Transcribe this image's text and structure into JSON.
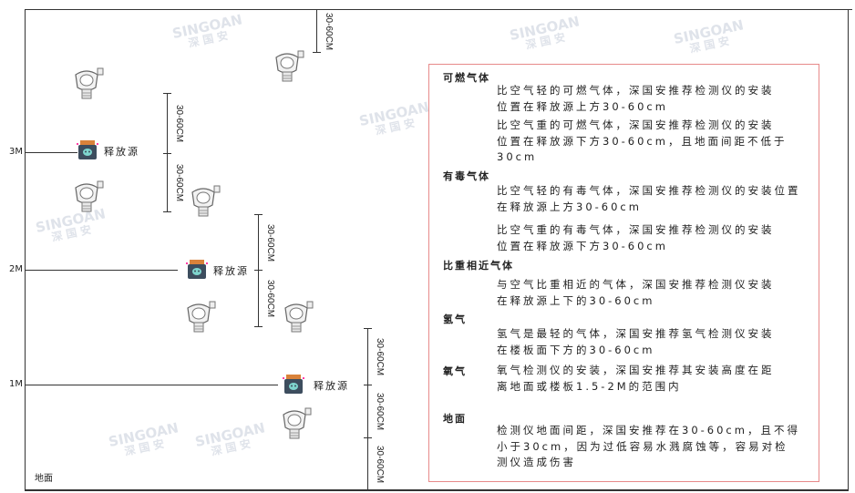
{
  "levels": {
    "m3": "3M",
    "m2": "2M",
    "m1": "1M",
    "floor": "地面"
  },
  "dimension_label": "30-60CM",
  "source_label": "释放源",
  "watermark": {
    "brand": "SINGOAN",
    "cn": "深国安"
  },
  "colors": {
    "box_border": "#e78a8a",
    "source_body": "#3d4d5e",
    "source_cap": "#d9823a",
    "source_face": "#7fd6cf"
  },
  "notes": {
    "combustible": {
      "title": "可燃气体",
      "p1": [
        "比空气轻的可燃气体，深国安推荐检测仪的安装",
        "位置在释放源上方30-60cm"
      ],
      "p2": [
        "比空气重的可燃气体，深国安推荐检测仪的安装",
        "位置在释放源下方30-60cm，且地面间距不低于",
        "30cm"
      ]
    },
    "toxic": {
      "title": "有毒气体",
      "p1": [
        "比空气轻的有毒气体，深国安推荐检测仪的安装位置",
        "在释放源上方30-60cm"
      ],
      "p2": [
        "比空气重的有毒气体，深国安推荐检测仪的安装",
        "位置在释放源下方30-60cm"
      ]
    },
    "similar": {
      "title": "比重相近气体",
      "p1": [
        "与空气比重相近的气体，深国安推荐检测仪安装",
        "在释放源上下的30-60cm"
      ]
    },
    "hydrogen": {
      "title": "氢气",
      "p1": [
        "氢气是最轻的气体，深国安推荐氢气检测仪安装",
        "在楼板面下方的30-60cm"
      ]
    },
    "oxygen": {
      "title": "氧气",
      "p1": [
        "氧气检测仪的安装，深国安推荐其安装高度在距",
        "离地面或楼板1.5-2M的范围内"
      ]
    },
    "floor": {
      "title": "地面",
      "p1": [
        "检测仪地面间距，深国安推荐在30-60cm，且不得",
        "小于30cm，因为过低容易水溅腐蚀等，容易对检",
        "测仪造成伤害"
      ]
    }
  }
}
